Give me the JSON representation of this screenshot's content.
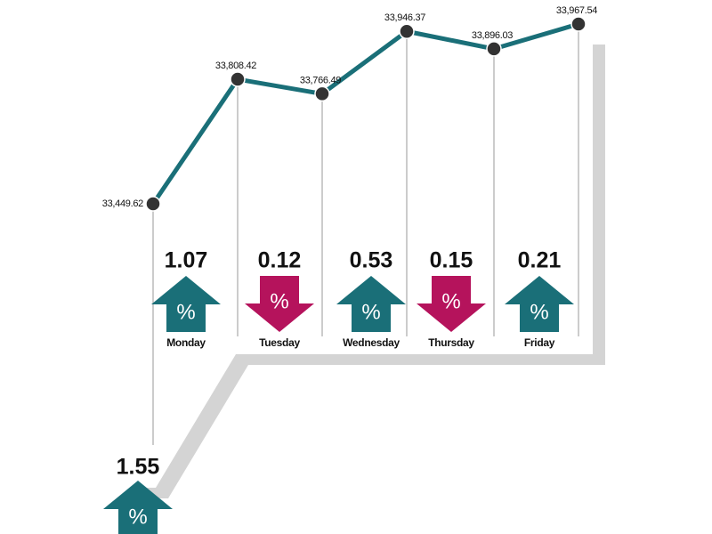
{
  "chart_data": {
    "type": "line",
    "categories": [
      null,
      "Monday",
      "Tuesday",
      "Wednesday",
      "Thursday",
      "Friday"
    ],
    "values": [
      33449.62,
      33808.42,
      33766.49,
      33946.37,
      33896.03,
      33967.54
    ],
    "value_labels": [
      "33,449.62",
      "33,808.42",
      "33,766.49",
      "33,946.37",
      "33,896.03",
      "33,967.54"
    ],
    "color": "#1a6f78",
    "daily_change": {
      "values": [
        1.07,
        0.12,
        0.53,
        0.15,
        0.21
      ],
      "direction": [
        "up",
        "down",
        "up",
        "down",
        "up"
      ]
    },
    "weekly_change": {
      "value": 1.55,
      "direction": "up"
    },
    "unit_symbol": "%",
    "up_color": "#1a6f78",
    "down_color": "#b5135c"
  }
}
